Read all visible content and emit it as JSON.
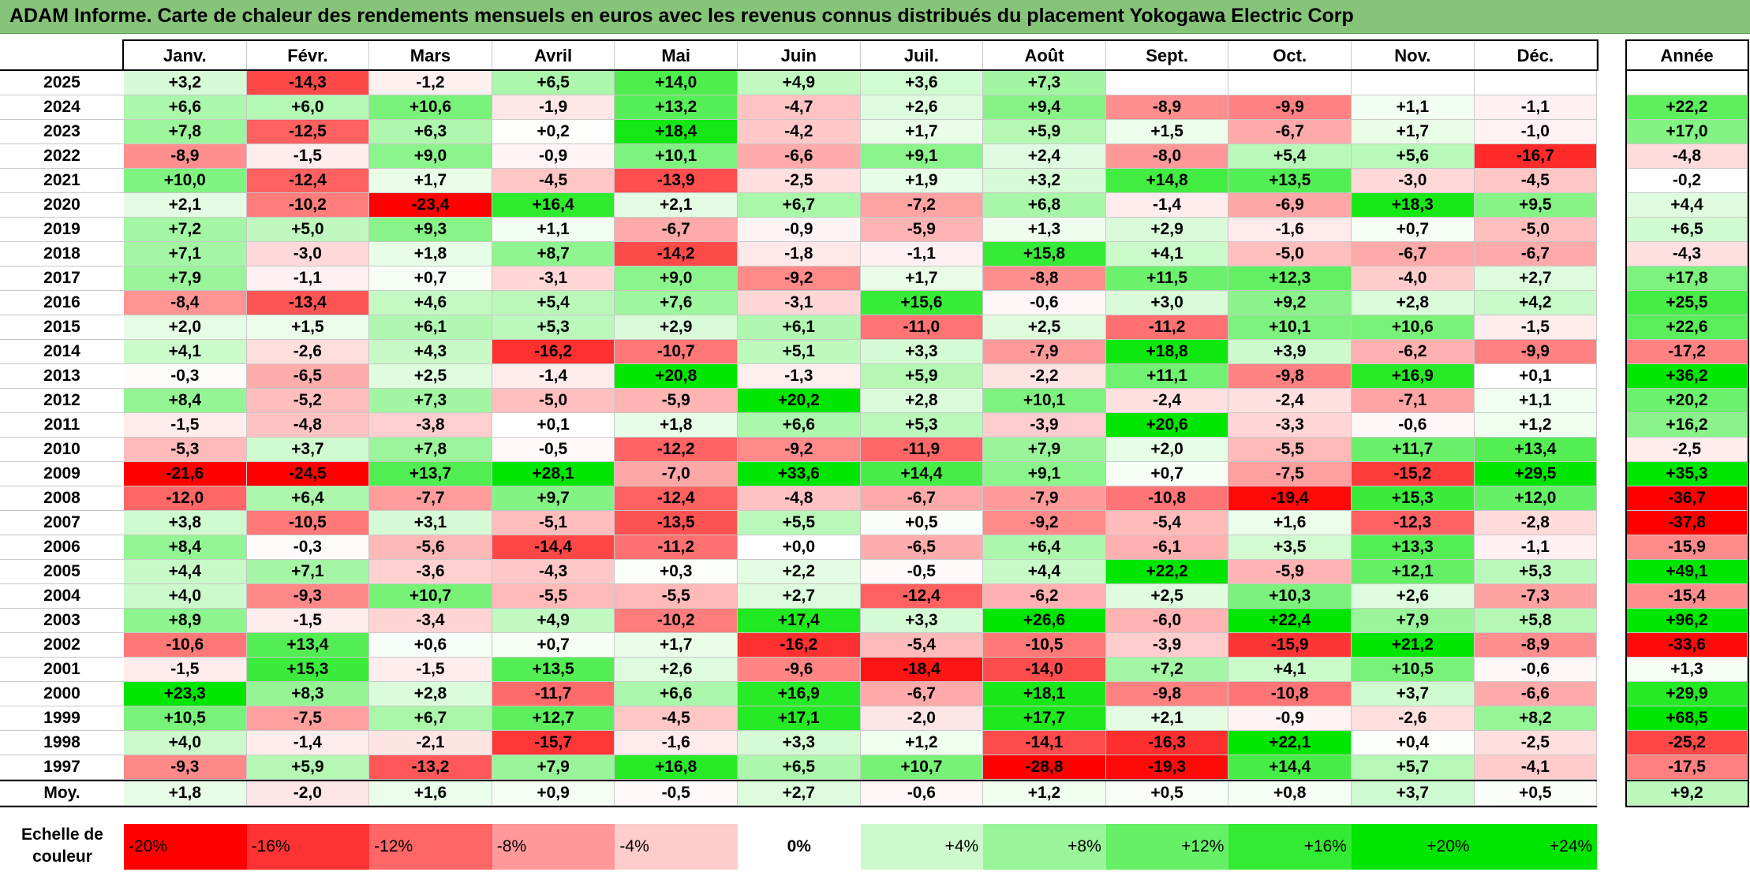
{
  "title": "ADAM Informe. Carte de chaleur des rendements mensuels en euros avec les revenus connus distribués du placement Yokogawa Electric Corp",
  "chart_data": {
    "type": "heatmap",
    "months": [
      "Janv.",
      "Févr.",
      "Mars",
      "Avril",
      "Mai",
      "Juin",
      "Juil.",
      "Août",
      "Sept.",
      "Oct.",
      "Nov.",
      "Déc."
    ],
    "year_header": "Année",
    "rows": [
      {
        "year": "2025",
        "values": [
          "+3,2",
          "-14,3",
          "-1,2",
          "+6,5",
          "+14,0",
          "+4,9",
          "+3,6",
          "+7,3",
          "",
          "",
          "",
          ""
        ],
        "annual": ""
      },
      {
        "year": "2024",
        "values": [
          "+6,6",
          "+6,0",
          "+10,6",
          "-1,9",
          "+13,2",
          "-4,7",
          "+2,6",
          "+9,4",
          "-8,9",
          "-9,9",
          "+1,1",
          "-1,1"
        ],
        "annual": "+22,2"
      },
      {
        "year": "2023",
        "values": [
          "+7,8",
          "-12,5",
          "+6,3",
          "+0,2",
          "+18,4",
          "-4,2",
          "+1,7",
          "+5,9",
          "+1,5",
          "-6,7",
          "+1,7",
          "-1,0"
        ],
        "annual": "+17,0"
      },
      {
        "year": "2022",
        "values": [
          "-8,9",
          "-1,5",
          "+9,0",
          "-0,9",
          "+10,1",
          "-6,6",
          "+9,1",
          "+2,4",
          "-8,0",
          "+5,4",
          "+5,6",
          "-16,7"
        ],
        "annual": "-4,8"
      },
      {
        "year": "2021",
        "values": [
          "+10,0",
          "-12,4",
          "+1,7",
          "-4,5",
          "-13,9",
          "-2,5",
          "+1,9",
          "+3,2",
          "+14,8",
          "+13,5",
          "-3,0",
          "-4,5"
        ],
        "annual": "-0,2"
      },
      {
        "year": "2020",
        "values": [
          "+2,1",
          "-10,2",
          "-23,4",
          "+16,4",
          "+2,1",
          "+6,7",
          "-7,2",
          "+6,8",
          "-1,4",
          "-6,9",
          "+18,3",
          "+9,5"
        ],
        "annual": "+4,4"
      },
      {
        "year": "2019",
        "values": [
          "+7,2",
          "+5,0",
          "+9,3",
          "+1,1",
          "-6,7",
          "-0,9",
          "-5,9",
          "+1,3",
          "+2,9",
          "-1,6",
          "+0,7",
          "-5,0"
        ],
        "annual": "+6,5"
      },
      {
        "year": "2018",
        "values": [
          "+7,1",
          "-3,0",
          "+1,8",
          "+8,7",
          "-14,2",
          "-1,8",
          "-1,1",
          "+15,8",
          "+4,1",
          "-5,0",
          "-6,7",
          "-6,7"
        ],
        "annual": "-4,3"
      },
      {
        "year": "2017",
        "values": [
          "+7,9",
          "-1,1",
          "+0,7",
          "-3,1",
          "+9,0",
          "-9,2",
          "+1,7",
          "-8,8",
          "+11,5",
          "+12,3",
          "-4,0",
          "+2,7"
        ],
        "annual": "+17,8"
      },
      {
        "year": "2016",
        "values": [
          "-8,4",
          "-13,4",
          "+4,6",
          "+5,4",
          "+7,6",
          "-3,1",
          "+15,6",
          "-0,6",
          "+3,0",
          "+9,2",
          "+2,8",
          "+4,2"
        ],
        "annual": "+25,5"
      },
      {
        "year": "2015",
        "values": [
          "+2,0",
          "+1,5",
          "+6,1",
          "+5,3",
          "+2,9",
          "+6,1",
          "-11,0",
          "+2,5",
          "-11,2",
          "+10,1",
          "+10,6",
          "-1,5"
        ],
        "annual": "+22,6"
      },
      {
        "year": "2014",
        "values": [
          "+4,1",
          "-2,6",
          "+4,3",
          "-16,2",
          "-10,7",
          "+5,1",
          "+3,3",
          "-7,9",
          "+18,8",
          "+3,9",
          "-6,2",
          "-9,9"
        ],
        "annual": "-17,2"
      },
      {
        "year": "2013",
        "values": [
          "-0,3",
          "-6,5",
          "+2,5",
          "-1,4",
          "+20,8",
          "-1,3",
          "+5,9",
          "-2,2",
          "+11,1",
          "-9,8",
          "+16,9",
          "+0,1"
        ],
        "annual": "+36,2"
      },
      {
        "year": "2012",
        "values": [
          "+8,4",
          "-5,2",
          "+7,3",
          "-5,0",
          "-5,9",
          "+20,2",
          "+2,8",
          "+10,1",
          "-2,4",
          "-2,4",
          "-7,1",
          "+1,1"
        ],
        "annual": "+20,2"
      },
      {
        "year": "2011",
        "values": [
          "-1,5",
          "-4,8",
          "-3,8",
          "+0,1",
          "+1,8",
          "+6,6",
          "+5,3",
          "-3,9",
          "+20,6",
          "-3,3",
          "-0,6",
          "+1,2"
        ],
        "annual": "+16,2"
      },
      {
        "year": "2010",
        "values": [
          "-5,3",
          "+3,7",
          "+7,8",
          "-0,5",
          "-12,2",
          "-9,2",
          "-11,9",
          "+7,9",
          "+2,0",
          "-5,5",
          "+11,7",
          "+13,4"
        ],
        "annual": "-2,5"
      },
      {
        "year": "2009",
        "values": [
          "-21,6",
          "-24,5",
          "+13,7",
          "+28,1",
          "-7,0",
          "+33,6",
          "+14,4",
          "+9,1",
          "+0,7",
          "-7,5",
          "-15,2",
          "+29,5"
        ],
        "annual": "+35,3"
      },
      {
        "year": "2008",
        "values": [
          "-12,0",
          "+6,4",
          "-7,7",
          "+9,7",
          "-12,4",
          "-4,8",
          "-6,7",
          "-7,9",
          "-10,8",
          "-19,4",
          "+15,3",
          "+12,0"
        ],
        "annual": "-36,7"
      },
      {
        "year": "2007",
        "values": [
          "+3,8",
          "-10,5",
          "+3,1",
          "-5,1",
          "-13,5",
          "+5,5",
          "+0,5",
          "-9,2",
          "-5,4",
          "+1,6",
          "-12,3",
          "-2,8"
        ],
        "annual": "-37,8"
      },
      {
        "year": "2006",
        "values": [
          "+8,4",
          "-0,3",
          "-5,6",
          "-14,4",
          "-11,2",
          "+0,0",
          "-6,5",
          "+6,4",
          "-6,1",
          "+3,5",
          "+13,3",
          "-1,1"
        ],
        "annual": "-15,9"
      },
      {
        "year": "2005",
        "values": [
          "+4,4",
          "+7,1",
          "-3,6",
          "-4,3",
          "+0,3",
          "+2,2",
          "-0,5",
          "+4,4",
          "+22,2",
          "-5,9",
          "+12,1",
          "+5,3"
        ],
        "annual": "+49,1"
      },
      {
        "year": "2004",
        "values": [
          "+4,0",
          "-9,3",
          "+10,7",
          "-5,5",
          "-5,5",
          "+2,7",
          "-12,4",
          "-6,2",
          "+2,5",
          "+10,3",
          "+2,6",
          "-7,3"
        ],
        "annual": "-15,4"
      },
      {
        "year": "2003",
        "values": [
          "+8,9",
          "-1,5",
          "-3,4",
          "+4,9",
          "-10,2",
          "+17,4",
          "+3,3",
          "+26,6",
          "-6,0",
          "+22,4",
          "+7,9",
          "+5,8"
        ],
        "annual": "+96,2"
      },
      {
        "year": "2002",
        "values": [
          "-10,6",
          "+13,4",
          "+0,6",
          "+0,7",
          "+1,7",
          "-16,2",
          "-5,4",
          "-10,5",
          "-3,9",
          "-15,9",
          "+21,2",
          "-8,9"
        ],
        "annual": "-33,6"
      },
      {
        "year": "2001",
        "values": [
          "-1,5",
          "+15,3",
          "-1,5",
          "+13,5",
          "+2,6",
          "-9,6",
          "-18,4",
          "-14,0",
          "+7,2",
          "+4,1",
          "+10,5",
          "-0,6"
        ],
        "annual": "+1,3"
      },
      {
        "year": "2000",
        "values": [
          "+23,3",
          "+8,3",
          "+2,8",
          "-11,7",
          "+6,6",
          "+16,9",
          "-6,7",
          "+18,1",
          "-9,8",
          "-10,8",
          "+3,7",
          "-6,6"
        ],
        "annual": "+29,9"
      },
      {
        "year": "1999",
        "values": [
          "+10,5",
          "-7,5",
          "+6,7",
          "+12,7",
          "-4,5",
          "+17,1",
          "-2,0",
          "+17,7",
          "+2,1",
          "-0,9",
          "-2,6",
          "+8,2"
        ],
        "annual": "+68,5"
      },
      {
        "year": "1998",
        "values": [
          "+4,0",
          "-1,4",
          "-2,1",
          "-15,7",
          "-1,6",
          "+3,3",
          "+1,2",
          "-14,1",
          "-16,3",
          "+22,1",
          "+0,4",
          "-2,5"
        ],
        "annual": "-25,2"
      },
      {
        "year": "1997",
        "values": [
          "-9,3",
          "+5,9",
          "-13,2",
          "+7,9",
          "+16,8",
          "+6,5",
          "+10,7",
          "-28,8",
          "-19,3",
          "+14,4",
          "+5,7",
          "-4,1"
        ],
        "annual": "-17,5"
      }
    ],
    "average": {
      "label": "Moy.",
      "values": [
        "+1,8",
        "-2,0",
        "+1,6",
        "+0,9",
        "-0,5",
        "+2,7",
        "-0,6",
        "+1,2",
        "+0,5",
        "+0,8",
        "+3,7",
        "+0,5"
      ],
      "annual": "+9,2"
    },
    "scale": {
      "label": "Echelle de\ncouleur",
      "steps": [
        "-20%",
        "-16%",
        "-12%",
        "-8%",
        "-4%",
        "0%",
        "+4%",
        "+8%",
        "+12%",
        "+16%",
        "+20%",
        "+24%"
      ],
      "step_values": [
        -20,
        -16,
        -12,
        -8,
        -4,
        0,
        4,
        8,
        12,
        16,
        20,
        24
      ]
    },
    "colors": {
      "negative_max": "#ff0000",
      "neutral": "#ffffff",
      "positive_max": "#00e000",
      "title_bg": "#86c47a"
    }
  }
}
